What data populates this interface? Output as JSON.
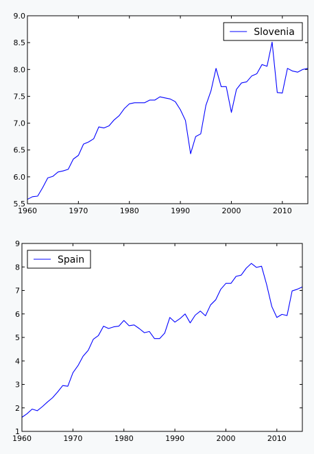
{
  "chart_data": [
    {
      "type": "line",
      "title": "",
      "xlabel": "",
      "ylabel": "",
      "xlim": [
        1960,
        2015
      ],
      "ylim": [
        5.5,
        9.0
      ],
      "xticks": [
        1960,
        1970,
        1980,
        1990,
        2000,
        2010
      ],
      "yticks": [
        "5.5",
        "6.0",
        "6.5",
        "7.0",
        "7.5",
        "8.0",
        "8.5",
        "9.0"
      ],
      "grid": false,
      "legend_position": "top-right",
      "series": [
        {
          "name": "Slovenia",
          "color": "#0000ff",
          "x": [
            1960,
            1961,
            1962,
            1963,
            1964,
            1965,
            1966,
            1967,
            1968,
            1969,
            1970,
            1971,
            1972,
            1973,
            1974,
            1975,
            1976,
            1977,
            1978,
            1979,
            1980,
            1981,
            1982,
            1983,
            1984,
            1985,
            1986,
            1987,
            1988,
            1989,
            1990,
            1991,
            1992,
            1993,
            1994,
            1995,
            1996,
            1997,
            1998,
            1999,
            2000,
            2001,
            2002,
            2003,
            2004,
            2005,
            2006,
            2007,
            2008,
            2009,
            2010,
            2011,
            2012,
            2013,
            2014,
            2015
          ],
          "y": [
            5.58,
            5.63,
            5.64,
            5.8,
            5.98,
            6.01,
            6.09,
            6.11,
            6.14,
            6.33,
            6.4,
            6.61,
            6.65,
            6.71,
            6.93,
            6.91,
            6.95,
            7.06,
            7.14,
            7.27,
            7.36,
            7.38,
            7.38,
            7.38,
            7.43,
            7.43,
            7.49,
            7.47,
            7.45,
            7.4,
            7.25,
            7.05,
            6.43,
            6.75,
            6.8,
            7.33,
            7.6,
            8.02,
            7.68,
            7.68,
            7.2,
            7.63,
            7.75,
            7.77,
            7.88,
            7.92,
            8.09,
            8.06,
            8.51,
            7.57,
            7.56,
            8.02,
            7.97,
            7.95,
            8.0,
            8.02
          ]
        }
      ]
    },
    {
      "type": "line",
      "title": "",
      "xlabel": "",
      "ylabel": "",
      "xlim": [
        1960,
        2015
      ],
      "ylim": [
        1,
        9
      ],
      "xticks": [
        1960,
        1970,
        1980,
        1990,
        2000,
        2010
      ],
      "yticks": [
        "1",
        "2",
        "3",
        "4",
        "5",
        "6",
        "7",
        "8",
        "9"
      ],
      "grid": false,
      "legend_position": "top-left",
      "series": [
        {
          "name": "Spain",
          "color": "#0000ff",
          "x": [
            1960,
            1961,
            1962,
            1963,
            1964,
            1965,
            1966,
            1967,
            1968,
            1969,
            1970,
            1971,
            1972,
            1973,
            1974,
            1975,
            1976,
            1977,
            1978,
            1979,
            1980,
            1981,
            1982,
            1983,
            1984,
            1985,
            1986,
            1987,
            1988,
            1989,
            1990,
            1991,
            1992,
            1993,
            1994,
            1995,
            1996,
            1997,
            1998,
            1999,
            2000,
            2001,
            2002,
            2003,
            2004,
            2005,
            2006,
            2007,
            2008,
            2009,
            2010,
            2011,
            2012,
            2013,
            2014,
            2015
          ],
          "y": [
            1.6,
            1.75,
            1.95,
            1.88,
            2.05,
            2.25,
            2.43,
            2.68,
            2.95,
            2.92,
            3.5,
            3.8,
            4.2,
            4.45,
            4.92,
            5.08,
            5.48,
            5.38,
            5.45,
            5.48,
            5.72,
            5.5,
            5.53,
            5.38,
            5.2,
            5.25,
            4.95,
            4.95,
            5.18,
            5.85,
            5.65,
            5.8,
            6.0,
            5.62,
            5.95,
            6.12,
            5.92,
            6.38,
            6.6,
            7.05,
            7.3,
            7.3,
            7.6,
            7.65,
            7.95,
            8.15,
            7.98,
            8.03,
            7.25,
            6.32,
            5.85,
            5.98,
            5.93,
            6.98,
            7.05,
            7.15
          ]
        }
      ]
    }
  ]
}
